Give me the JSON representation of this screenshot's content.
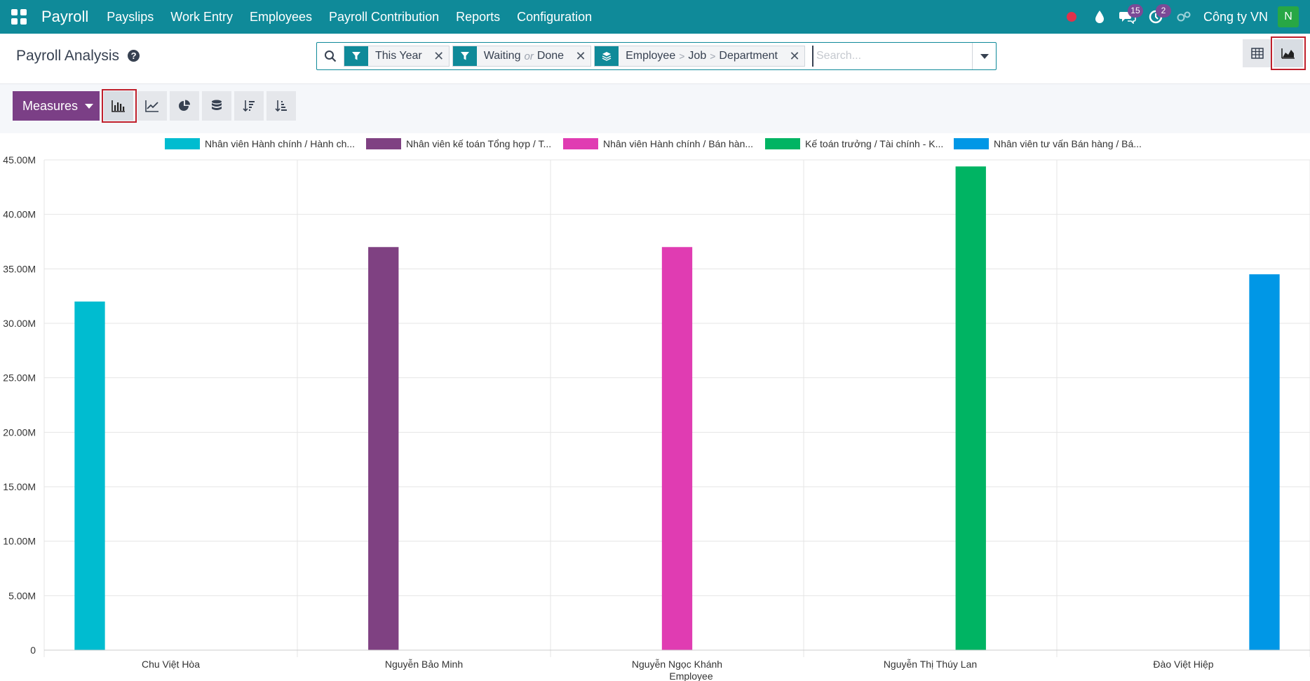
{
  "navbar": {
    "brand": "Payroll",
    "menu": [
      "Payslips",
      "Work Entry",
      "Employees",
      "Payroll Contribution",
      "Reports",
      "Configuration"
    ],
    "messages_count": "15",
    "activities_count": "2",
    "company": "Công ty VN",
    "avatar_letter": "N"
  },
  "control": {
    "title": "Payroll Analysis",
    "help": "?",
    "facets": [
      {
        "icon": "filter-icon",
        "parts": [
          "This Year"
        ]
      },
      {
        "icon": "filter-icon",
        "parts": [
          "Waiting",
          "or",
          "Done"
        ]
      },
      {
        "icon": "group-by-icon",
        "parts": [
          "Employee",
          ">",
          "Job",
          ">",
          "Department"
        ]
      }
    ],
    "search_placeholder": "Search..."
  },
  "toolbar": {
    "measures_label": "Measures"
  },
  "colors": {
    "navbar": "#0f8a99",
    "primary": "#7b3f86",
    "series": [
      "#00bcd0",
      "#7f4182",
      "#e03cb2",
      "#00b463",
      "#0097e6"
    ]
  },
  "chart_data": {
    "type": "bar",
    "categories": [
      "Chu Việt Hòa",
      "Nguyễn Bảo Minh",
      "Nguyễn Ngọc Khánh",
      "Nguyễn Thị Thúy Lan",
      "Đào Việt Hiệp"
    ],
    "series": [
      {
        "name": "Nhân viên Hành chính / Hành ch...",
        "values": [
          32.0,
          0,
          0,
          0,
          0
        ]
      },
      {
        "name": "Nhân viên kế toán Tổng hợp / T...",
        "values": [
          0,
          37.0,
          0,
          0,
          0
        ]
      },
      {
        "name": "Nhân viên Hành chính / Bán hàn...",
        "values": [
          0,
          0,
          37.0,
          0,
          0
        ]
      },
      {
        "name": "Kế toán trưởng / Tài chính - K...",
        "values": [
          0,
          0,
          0,
          44.4,
          0
        ]
      },
      {
        "name": "Nhân viên tư vấn Bán hàng / Bá...",
        "values": [
          0,
          0,
          0,
          0,
          34.5
        ]
      }
    ],
    "unit": "M",
    "yticks": [
      "0",
      "5.00M",
      "10.00M",
      "15.00M",
      "20.00M",
      "25.00M",
      "30.00M",
      "35.00M",
      "40.00M",
      "45.00M"
    ],
    "ylim": [
      0,
      45
    ],
    "xlabel": "Employee",
    "ylabel": "",
    "grid": true,
    "legend": "top"
  }
}
